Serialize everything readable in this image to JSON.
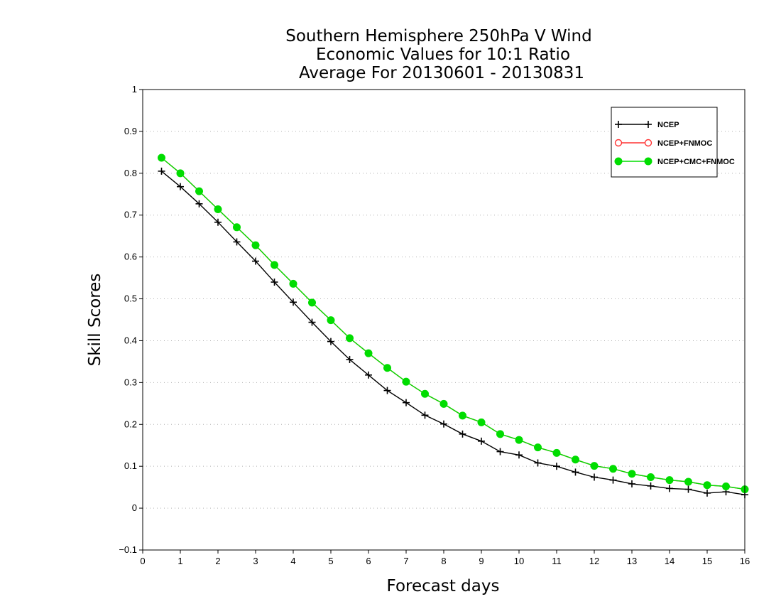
{
  "chart_data": {
    "type": "line",
    "title_lines": [
      "Southern Hemisphere 250hPa V Wind",
      "Economic Values for 10:1 Ratio",
      "Average For 20130601 - 20130831"
    ],
    "xlabel": "Forecast days",
    "ylabel": "Skill Scores",
    "xlim": [
      0,
      16
    ],
    "ylim": [
      -0.1,
      1
    ],
    "xticks": [
      0,
      1,
      2,
      3,
      4,
      5,
      6,
      7,
      8,
      9,
      10,
      11,
      12,
      13,
      14,
      15,
      16
    ],
    "yticks": [
      -0.1,
      0,
      0.1,
      0.2,
      0.3,
      0.4,
      0.5,
      0.6,
      0.7,
      0.8,
      0.9,
      1
    ],
    "ytick_labels": [
      "−0.1",
      "0",
      "0.1",
      "0.2",
      "0.3",
      "0.4",
      "0.5",
      "0.6",
      "0.7",
      "0.8",
      "0.9",
      "1"
    ],
    "grid": true,
    "legend_position": "top-right",
    "x": [
      0.5,
      1,
      1.5,
      2,
      2.5,
      3,
      3.5,
      4,
      4.5,
      5,
      5.5,
      6,
      6.5,
      7,
      7.5,
      8,
      8.5,
      9,
      9.5,
      10,
      10.5,
      11,
      11.5,
      12,
      12.5,
      13,
      13.5,
      14,
      14.5,
      15,
      15.5,
      16
    ],
    "series": [
      {
        "name": "NCEP",
        "color": "#000000",
        "marker": "plus",
        "values": [
          0.805,
          0.768,
          0.727,
          0.683,
          0.636,
          0.59,
          0.54,
          0.492,
          0.444,
          0.398,
          0.355,
          0.318,
          0.281,
          0.252,
          0.222,
          0.201,
          0.177,
          0.16,
          0.135,
          0.127,
          0.108,
          0.1,
          0.086,
          0.074,
          0.067,
          0.058,
          0.053,
          0.047,
          0.045,
          0.036,
          0.039,
          0.032
        ]
      },
      {
        "name": "NCEP+FNMOC",
        "color": "#ff3333",
        "marker": "open-circle",
        "values": [
          0.837,
          0.8,
          0.757,
          0.714,
          0.671,
          0.628,
          0.581,
          0.536,
          0.491,
          0.449,
          0.406,
          0.37,
          0.335,
          0.302,
          0.273,
          0.249,
          0.221,
          0.205,
          0.177,
          0.163,
          0.145,
          0.132,
          0.116,
          0.101,
          0.094,
          0.082,
          0.074,
          0.067,
          0.063,
          0.055,
          0.052,
          0.045
        ]
      },
      {
        "name": "NCEP+CMC+FNMOC",
        "color": "#00dd00",
        "marker": "filled-circle",
        "values": [
          0.837,
          0.8,
          0.757,
          0.714,
          0.671,
          0.628,
          0.581,
          0.536,
          0.491,
          0.449,
          0.406,
          0.37,
          0.335,
          0.302,
          0.273,
          0.249,
          0.221,
          0.205,
          0.177,
          0.163,
          0.145,
          0.132,
          0.116,
          0.101,
          0.094,
          0.082,
          0.074,
          0.067,
          0.063,
          0.055,
          0.052,
          0.045
        ]
      }
    ]
  }
}
